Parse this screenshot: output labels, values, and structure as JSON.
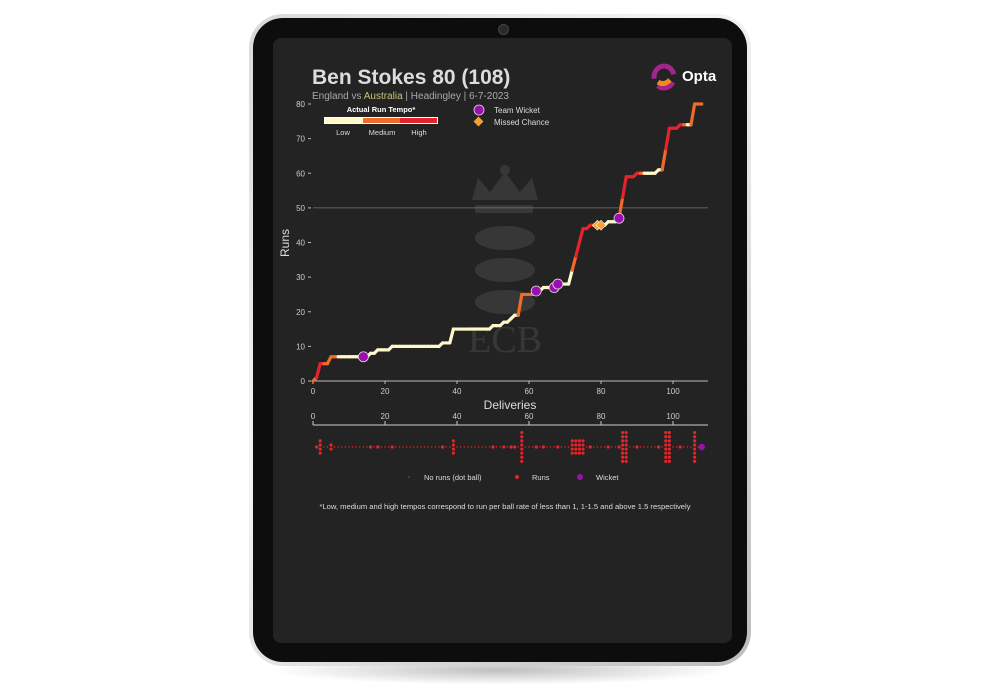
{
  "header": {
    "title": "Ben Stokes 80 (108)",
    "subtitle_team1": "England vs ",
    "subtitle_team2": "Australia",
    "subtitle_rest": " | Headingley | 6-7-2023",
    "logo_text": "Opta",
    "watermark_text": "ECB"
  },
  "legend": {
    "tempo_title": "Actual Run Tempo*",
    "tempo_levels": [
      {
        "label": "Low",
        "color": "#fff8c8"
      },
      {
        "label": "Medium",
        "color": "#f06a28"
      },
      {
        "label": "High",
        "color": "#e3242b"
      }
    ],
    "team_wicket": "Team Wicket",
    "missed_chance": "Missed Chance",
    "strip_dot": "No runs (dot ball)",
    "strip_runs": "Runs",
    "strip_wicket": "Wicket"
  },
  "footnote": "*Low, medium and high tempos correspond to run per ball rate of less than 1, 1-1.5 and above 1.5 respectively",
  "colors": {
    "background": "#232323",
    "wicket": "#9b0fb0",
    "missed": "#f5a030",
    "runs_dot": "#e3242b"
  },
  "chart_data": {
    "type": "line",
    "xlabel": "Deliveries",
    "ylabel": "Runs",
    "xlim": [
      0,
      110
    ],
    "ylim": [
      0,
      80
    ],
    "xticks": [
      0,
      20,
      40,
      60,
      80,
      100
    ],
    "yticks": [
      0,
      10,
      20,
      30,
      40,
      50,
      60,
      70,
      80
    ],
    "reference_line_y": 50,
    "total_deliveries": 108,
    "runs_by_ball": {
      "1": 1,
      "2": 4,
      "5": 2,
      "16": 1,
      "18": 1,
      "22": 1,
      "36": 1,
      "39": 4,
      "50": 1,
      "53": 1,
      "55": 1,
      "56": 1,
      "58": 6,
      "62": 1,
      "64": 1,
      "68": 1,
      "72": 4,
      "73": 4,
      "74": 4,
      "75": 4,
      "77": 1,
      "82": 1,
      "85": 1,
      "86": 6,
      "87": 6,
      "90": 1,
      "96": 1,
      "98": 6,
      "99": 6,
      "102": 1,
      "106": 6
    },
    "team_wickets": [
      14,
      62,
      67,
      68,
      85
    ],
    "missed_chances": [
      79,
      80
    ],
    "dismissal_ball": 108
  }
}
